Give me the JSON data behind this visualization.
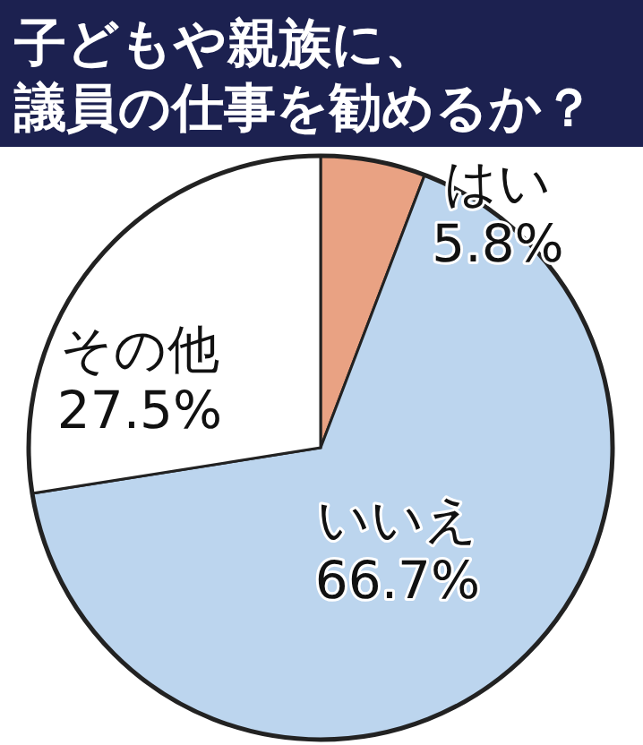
{
  "chart_data": {
    "type": "pie",
    "title": "子どもや親族に、議員の仕事を勧めるか？",
    "categories": [
      "はい",
      "いいえ",
      "その他"
    ],
    "values": [
      5.8,
      66.7,
      27.5
    ],
    "colors": [
      "#e9a283",
      "#bcd5ee",
      "#ffffff"
    ],
    "value_labels": [
      "5.8%",
      "66.7%",
      "27.5%"
    ]
  }
}
